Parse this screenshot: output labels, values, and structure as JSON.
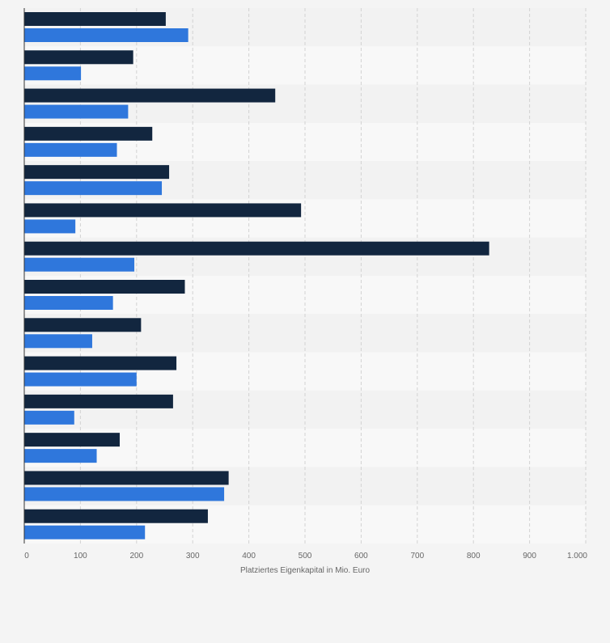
{
  "colors": {
    "page_bg": "#f4f4f4",
    "band_odd": "#f2f2f2",
    "band_even": "#f8f8f8",
    "series_dark": "#12263f",
    "series_blue": "#2f77dc",
    "grid": "#d2d2d2",
    "axis": "#333333",
    "text": "#666666"
  },
  "chart_data": {
    "type": "bar",
    "orientation": "horizontal",
    "xlabel": "Platziertes Eigenkapital in Mio. Euro",
    "xlim": [
      0,
      1000
    ],
    "xticks": [
      0,
      100,
      200,
      300,
      400,
      500,
      600,
      700,
      800,
      900,
      1000
    ],
    "xtick_labels": [
      "0",
      "100",
      "200",
      "300",
      "400",
      "500",
      "600",
      "700",
      "800",
      "900",
      "1.000"
    ],
    "grid": "vertical dashed",
    "categories": [
      "",
      "",
      "",
      "",
      "",
      "",
      "",
      "",
      "",
      "",
      "",
      "",
      "",
      ""
    ],
    "series": [
      {
        "color": "#12263f",
        "values": [
          252,
          194,
          447,
          228,
          258,
          493,
          828,
          286,
          208,
          271,
          265,
          170,
          364,
          327
        ]
      },
      {
        "color": "#2f77dc",
        "values": [
          292,
          101,
          185,
          165,
          245,
          91,
          196,
          158,
          121,
          200,
          89,
          129,
          356,
          215
        ]
      }
    ]
  }
}
